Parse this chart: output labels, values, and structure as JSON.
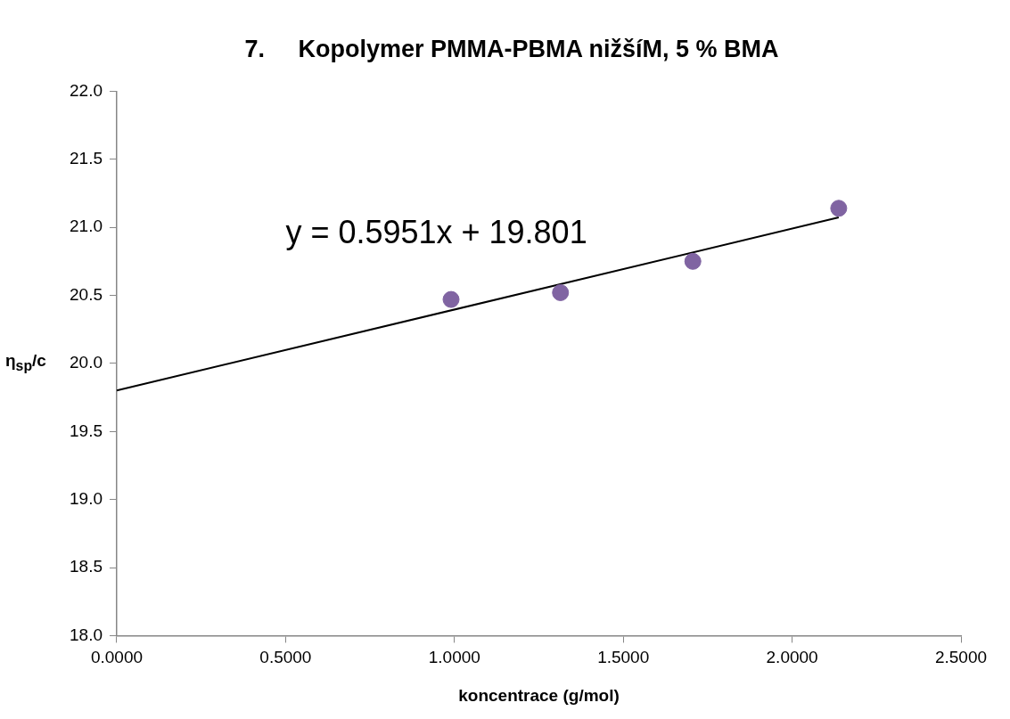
{
  "chart_data": {
    "type": "scatter",
    "title": "7.     Kopolymer PMMA-PBMA nižšíM, 5 % BMA",
    "xlabel": "koncentrace (g/mol)",
    "ylabel": "η$_{sp}$/c",
    "series": [
      {
        "color": "#8064a2",
        "x": [
          0.99,
          1.314,
          1.706,
          2.138
        ],
        "values": [
          20.47,
          20.52,
          20.75,
          21.14
        ],
        "marker": "circle"
      },
      {
        "type": "line",
        "color": "#000000",
        "x": [
          0,
          2.138
        ],
        "values": [
          19.801,
          21.073
        ],
        "marker": "none",
        "line_style": "solid"
      }
    ],
    "xlim": [
      0,
      2.5
    ],
    "xticks": [
      {
        "value": 0,
        "label": "0.0000"
      },
      {
        "value": 0.5,
        "label": "0.5000"
      },
      {
        "value": 1,
        "label": "1.0000"
      },
      {
        "value": 1.5,
        "label": "1.5000"
      },
      {
        "value": 2,
        "label": "2.0000"
      },
      {
        "value": 2.5,
        "label": "2.5000"
      }
    ],
    "ylim": [
      18,
      22
    ],
    "yticks": [
      {
        "value": 18,
        "label": "18.0"
      },
      {
        "value": 18.5,
        "label": "18.5"
      },
      {
        "value": 19,
        "label": "19.0"
      },
      {
        "value": 19.5,
        "label": "19.5"
      },
      {
        "value": 20,
        "label": "20.0"
      },
      {
        "value": 20.5,
        "label": "20.5"
      },
      {
        "value": 21,
        "label": "21.0"
      },
      {
        "value": 21.5,
        "label": "21.5"
      },
      {
        "value": 22,
        "label": "22.0"
      }
    ],
    "grid": false,
    "legend": false,
    "annotations": [
      "y = 0.5951x + 19.801"
    ]
  }
}
